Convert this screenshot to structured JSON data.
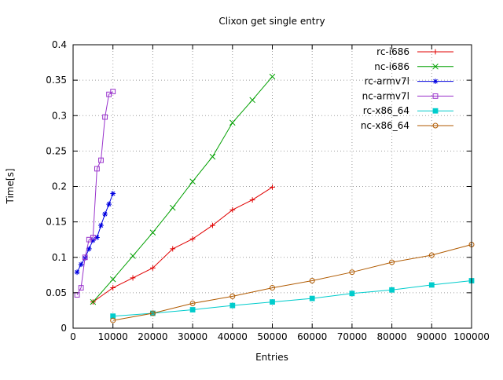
{
  "chart_data": {
    "type": "line",
    "title": "Clixon get single entry",
    "xlabel": "Entries",
    "ylabel": "Time[s]",
    "xlim": [
      0,
      100000
    ],
    "ylim": [
      0,
      0.4
    ],
    "xticks": [
      0,
      10000,
      20000,
      30000,
      40000,
      50000,
      60000,
      70000,
      80000,
      90000,
      100000
    ],
    "xtick_labels": [
      "0",
      "10000",
      "20000",
      "30000",
      "40000",
      "50000",
      "60000",
      "70000",
      "80000",
      "90000",
      "100000"
    ],
    "yticks": [
      0,
      0.05,
      0.1,
      0.15,
      0.2,
      0.25,
      0.3,
      0.35,
      0.4
    ],
    "ytick_labels": [
      "0",
      "0.05",
      "0.1",
      "0.15",
      "0.2",
      "0.25",
      "0.3",
      "0.35",
      "0.4"
    ],
    "grid": true,
    "legend_position": "top-right-inside",
    "series": [
      {
        "name": "rc-i686",
        "color": "#e00000",
        "marker": "plus",
        "x": [
          5000,
          10000,
          15000,
          20000,
          25000,
          30000,
          35000,
          40000,
          45000,
          50000
        ],
        "y": [
          0.037,
          0.057,
          0.071,
          0.085,
          0.112,
          0.126,
          0.145,
          0.167,
          0.181,
          0.199
        ]
      },
      {
        "name": "nc-i686",
        "color": "#00a000",
        "marker": "cross",
        "x": [
          5000,
          10000,
          15000,
          20000,
          25000,
          30000,
          35000,
          40000,
          45000,
          50000
        ],
        "y": [
          0.037,
          0.069,
          0.102,
          0.135,
          0.17,
          0.207,
          0.242,
          0.29,
          0.322,
          0.355
        ]
      },
      {
        "name": "rc-armv7l",
        "color": "#0000e0",
        "marker": "asterisk",
        "x": [
          1000,
          2000,
          3000,
          4000,
          5000,
          6000,
          7000,
          8000,
          9000,
          10000
        ],
        "y": [
          0.079,
          0.09,
          0.099,
          0.112,
          0.124,
          0.128,
          0.145,
          0.161,
          0.175,
          0.19
        ]
      },
      {
        "name": "nc-armv7l",
        "color": "#9933cc",
        "marker": "square-open",
        "x": [
          1000,
          2000,
          3000,
          4000,
          5000,
          6000,
          7000,
          8000,
          9000,
          10000
        ],
        "y": [
          0.047,
          0.057,
          0.1,
          0.125,
          0.128,
          0.225,
          0.237,
          0.298,
          0.33,
          0.334
        ]
      },
      {
        "name": "rc-x86_64",
        "color": "#00cccc",
        "marker": "square-filled",
        "x": [
          10000,
          20000,
          30000,
          40000,
          50000,
          60000,
          70000,
          80000,
          90000,
          100000
        ],
        "y": [
          0.017,
          0.021,
          0.026,
          0.032,
          0.037,
          0.042,
          0.049,
          0.054,
          0.061,
          0.067
        ]
      },
      {
        "name": "nc-x86_64",
        "color": "#b05a00",
        "marker": "circle-open",
        "x": [
          10000,
          20000,
          30000,
          40000,
          50000,
          60000,
          70000,
          80000,
          90000,
          100000
        ],
        "y": [
          0.011,
          0.021,
          0.035,
          0.045,
          0.057,
          0.067,
          0.079,
          0.093,
          0.103,
          0.118
        ]
      }
    ]
  }
}
